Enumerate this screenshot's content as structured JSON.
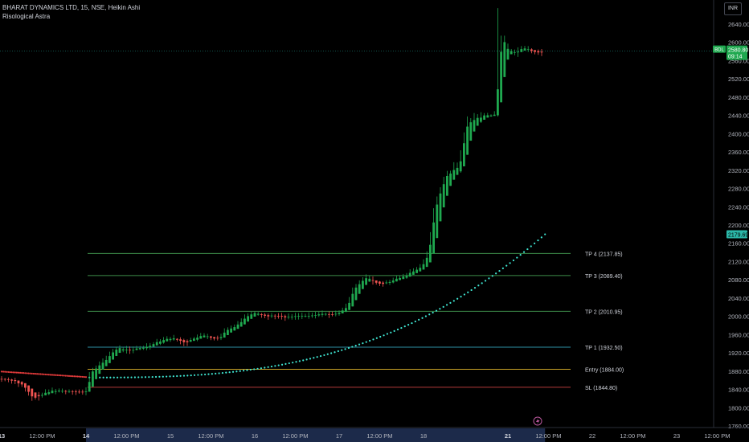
{
  "header": {
    "symbol_line": "BHARAT DYNAMICS LTD, 15, NSE, Heikin Ashi",
    "indicator_line": "Risological Astra"
  },
  "currency_button": "INR",
  "price_badges": {
    "last_label": "BDL",
    "last_price": "2580.80",
    "countdown": "09:14",
    "trail_price": "2179.69"
  },
  "colors": {
    "bull": "#26a69a",
    "bull_body": "#1fa84f",
    "bear": "#ef5350",
    "entry": "#c9a227",
    "sl": "#b33a3a",
    "tp": "#3d8c4a",
    "tp1": "#2e8fa3",
    "trail": "#3fe6d2",
    "trail_pre": "#e03a3a"
  },
  "chart_data": {
    "type": "candlestick",
    "y_range": [
      1750,
      2680
    ],
    "y_ticks": [
      "1760.00",
      "1800.00",
      "1840.00",
      "1880.00",
      "1920.00",
      "1960.00",
      "2000.00",
      "2040.00",
      "2080.00",
      "2120.00",
      "2160.00",
      "2200.00",
      "2240.00",
      "2280.00",
      "2320.00",
      "2360.00",
      "2400.00",
      "2440.00",
      "2480.00",
      "2520.00",
      "2560.00",
      "2600.00",
      "2640.00"
    ],
    "x_axis_labels": [
      {
        "label": "13",
        "i": 0,
        "bold": true
      },
      {
        "label": "12:00 PM",
        "i": 12
      },
      {
        "label": "14",
        "i": 25,
        "bold": true
      },
      {
        "label": "12:00 PM",
        "i": 37
      },
      {
        "label": "15",
        "i": 50
      },
      {
        "label": "12:00 PM",
        "i": 62
      },
      {
        "label": "16",
        "i": 75
      },
      {
        "label": "12:00 PM",
        "i": 87
      },
      {
        "label": "17",
        "i": 100
      },
      {
        "label": "12:00 PM",
        "i": 112
      },
      {
        "label": "18",
        "i": 125
      },
      {
        "label": "21",
        "i": 150,
        "bold": true
      },
      {
        "label": "12:00 PM",
        "i": 162
      },
      {
        "label": "22",
        "i": 175
      },
      {
        "label": "12:00 PM",
        "i": 187
      },
      {
        "label": "23",
        "i": 200
      },
      {
        "label": "12:00 PM",
        "i": 212
      }
    ],
    "levels": [
      {
        "label": "TP 4 (2137.85)",
        "value": 2137.85,
        "color_key": "tp"
      },
      {
        "label": "TP 3 (2089.40)",
        "value": 2089.4,
        "color_key": "tp"
      },
      {
        "label": "TP 2 (2010.95)",
        "value": 2010.95,
        "color_key": "tp"
      },
      {
        "label": "TP 1 (1932.50)",
        "value": 1932.5,
        "color_key": "tp1"
      },
      {
        "label": "Entry (1884.00)",
        "value": 1884.0,
        "color_key": "entry"
      },
      {
        "label": "SL (1844.80)",
        "value": 1844.8,
        "color_key": "sl"
      }
    ],
    "levels_start_index": 25,
    "last_price": 2580.8,
    "close_path": [
      [
        0,
        1862
      ],
      [
        3,
        1860
      ],
      [
        6,
        1848
      ],
      [
        9,
        1820
      ],
      [
        12,
        1830
      ],
      [
        15,
        1838
      ],
      [
        18,
        1836
      ],
      [
        21,
        1836
      ],
      [
        24,
        1833
      ],
      [
        25,
        1838
      ],
      [
        26,
        1875
      ],
      [
        28,
        1890
      ],
      [
        30,
        1900
      ],
      [
        32,
        1918
      ],
      [
        34,
        1930
      ],
      [
        36,
        1928
      ],
      [
        38,
        1925
      ],
      [
        40,
        1930
      ],
      [
        42,
        1932
      ],
      [
        44,
        1938
      ],
      [
        46,
        1945
      ],
      [
        48,
        1950
      ],
      [
        50,
        1952
      ],
      [
        52,
        1948
      ],
      [
        54,
        1942
      ],
      [
        56,
        1950
      ],
      [
        58,
        1955
      ],
      [
        60,
        1958
      ],
      [
        62,
        1952
      ],
      [
        64,
        1950
      ],
      [
        66,
        1968
      ],
      [
        68,
        1975
      ],
      [
        70,
        1985
      ],
      [
        72,
        1998
      ],
      [
        74,
        2008
      ],
      [
        76,
        2005
      ],
      [
        78,
        2000
      ],
      [
        80,
        2002
      ],
      [
        82,
        2000
      ],
      [
        84,
        1998
      ],
      [
        86,
        2000
      ],
      [
        88,
        2002
      ],
      [
        90,
        2000
      ],
      [
        92,
        2002
      ],
      [
        94,
        2005
      ],
      [
        96,
        2006
      ],
      [
        98,
        2003
      ],
      [
        100,
        2010
      ],
      [
        102,
        2020
      ],
      [
        104,
        2060
      ],
      [
        106,
        2075
      ],
      [
        108,
        2085
      ],
      [
        110,
        2075
      ],
      [
        112,
        2070
      ],
      [
        114,
        2075
      ],
      [
        116,
        2080
      ],
      [
        118,
        2085
      ],
      [
        120,
        2092
      ],
      [
        122,
        2100
      ],
      [
        124,
        2108
      ],
      [
        126,
        2135
      ],
      [
        127,
        2180
      ],
      [
        128,
        2230
      ],
      [
        129,
        2260
      ],
      [
        130,
        2280
      ],
      [
        131,
        2300
      ],
      [
        132,
        2315
      ],
      [
        133,
        2310
      ],
      [
        134,
        2330
      ],
      [
        135,
        2320
      ],
      [
        136,
        2360
      ],
      [
        137,
        2400
      ],
      [
        138,
        2430
      ],
      [
        139,
        2420
      ],
      [
        140,
        2440
      ],
      [
        141,
        2430
      ],
      [
        142,
        2440
      ],
      [
        143,
        2440
      ],
      [
        144,
        2440
      ],
      [
        145,
        2440
      ],
      [
        146,
        2445
      ],
      [
        147,
        2550
      ],
      [
        148,
        2610
      ],
      [
        149,
        2590
      ],
      [
        150,
        2580
      ],
      [
        151,
        2582
      ],
      [
        152,
        2576
      ],
      [
        153,
        2585
      ],
      [
        154,
        2585
      ],
      [
        155,
        2587
      ],
      [
        156,
        2582
      ],
      [
        157,
        2580
      ],
      [
        158,
        2579
      ],
      [
        159,
        2576
      ],
      [
        160,
        2580
      ]
    ],
    "trail_dotted": {
      "pre_entry": {
        "start": [
          0,
          1879
        ],
        "end": [
          25,
          1867
        ]
      },
      "post_entry": {
        "start": [
          26,
          1866
        ],
        "end": [
          161,
          2179.69
        ]
      }
    }
  }
}
